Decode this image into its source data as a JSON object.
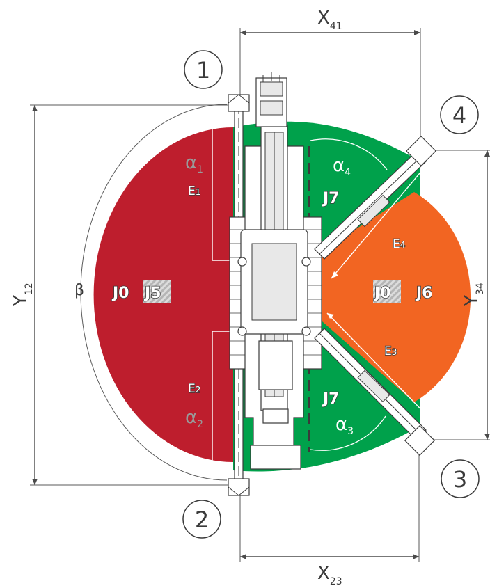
{
  "labels": {
    "x41": "X",
    "x41_sub": "41",
    "x23": "X",
    "x23_sub": "23",
    "y12": "Y",
    "y12_sub": "12",
    "y34": "Y",
    "y34_sub": "34",
    "beta": "β"
  },
  "outriggers": [
    "1",
    "2",
    "3",
    "4"
  ],
  "zones": {
    "left_codes": [
      "J0",
      "J5"
    ],
    "right_codes": [
      "J0",
      "J6"
    ],
    "top_code": "J7",
    "bottom_code": "J7"
  },
  "extensions": {
    "e1": "E",
    "e1_sub": "1",
    "e2": "E",
    "e2_sub": "2",
    "e3": "E",
    "e3_sub": "3",
    "e4": "E",
    "e4_sub": "4"
  },
  "angles": {
    "a1": "α",
    "a1_sub": "1",
    "a2": "α",
    "a2_sub": "2",
    "a3": "α",
    "a3_sub": "3",
    "a4": "α",
    "a4_sub": "4"
  },
  "colors": {
    "red": "#be1e2d",
    "green": "#00a14b",
    "orange": "#f26522",
    "line": "#4a4a4a"
  }
}
